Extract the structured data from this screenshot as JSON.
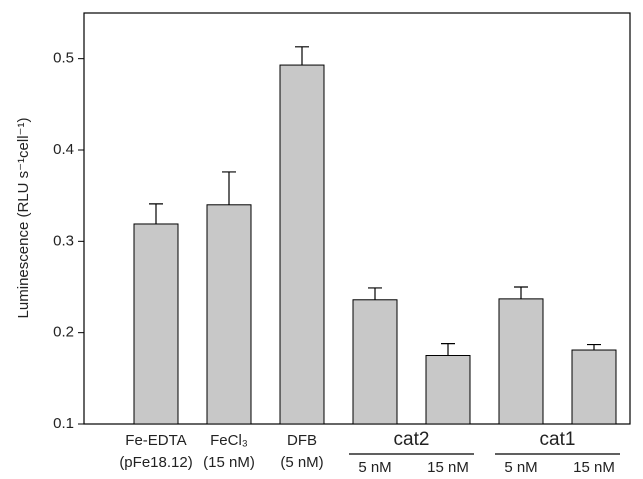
{
  "chart_data": {
    "type": "bar",
    "y_label": "Luminescence (RLU s⁻¹cell⁻¹)",
    "categories": [
      [
        "Fe-EDTA",
        "(pFe18.12)"
      ],
      [
        "FeCl₃",
        "(15 nM)"
      ],
      [
        "DFB",
        "(5 nM)"
      ],
      [
        "5 nM"
      ],
      [
        "15 nM"
      ],
      [
        "5 nM"
      ],
      [
        "15 nM"
      ]
    ],
    "category_groups": [
      null,
      null,
      null,
      "cat2",
      "cat2",
      "cat1",
      "cat1"
    ],
    "values": [
      0.319,
      0.34,
      0.493,
      0.236,
      0.175,
      0.237,
      0.181
    ],
    "errors": [
      0.022,
      0.036,
      0.02,
      0.013,
      0.013,
      0.013,
      0.006
    ],
    "color": "#c8c8c8",
    "ylim": [
      0.1,
      0.55
    ],
    "yticks": [
      0.1,
      0.2,
      0.3,
      0.4,
      0.5
    ],
    "grid": false
  }
}
